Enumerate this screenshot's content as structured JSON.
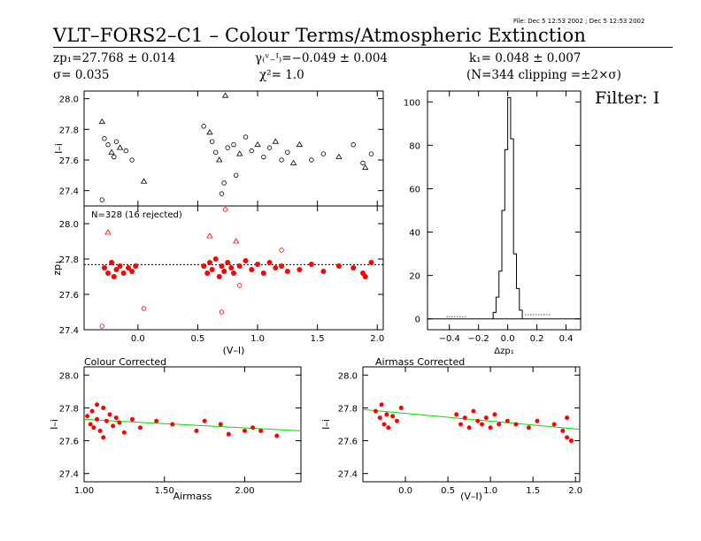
{
  "header": {
    "file_stamp": "File: Dec  5 12:53 2002 ; Dec  5 12:53 2002",
    "title": "VLT–FORS2–C1 – Colour Terms/Atmospheric Extinction",
    "zp": "zp₁=27.768 ± 0.014",
    "sigma": "σ= 0.035",
    "gamma": "γ₍ᵛ₋ᴵ₎=−0.049 ± 0.004",
    "chi2": "χ²=  1.0",
    "k": "k₁= 0.048 ± 0.007",
    "clipping": "(N=344 clipping =±2×σ)",
    "filter": "Filter: I"
  },
  "colors": {
    "accepted": "#ff0000",
    "fit": "#00dd00",
    "axis": "#000000"
  },
  "chart_data": [
    {
      "id": "top-left",
      "type": "scatter",
      "title": "",
      "xlabel": "",
      "ylabel": "I–i",
      "xlim": [
        -0.45,
        2.05
      ],
      "ylim": [
        27.3,
        28.05
      ],
      "yticks": [
        "28.0",
        "27.8",
        "27.6",
        "27.4"
      ],
      "markers": "open black circles and triangles",
      "series": [
        {
          "values": [
            [
              -0.3,
              27.85
            ],
            [
              -0.28,
              27.74
            ],
            [
              -0.25,
              27.7
            ],
            [
              -0.22,
              27.65
            ],
            [
              -0.2,
              27.62
            ],
            [
              -0.18,
              27.72
            ],
            [
              -0.15,
              27.68
            ],
            [
              -0.1,
              27.66
            ],
            [
              -0.05,
              27.6
            ],
            [
              0.05,
              27.46
            ],
            [
              -0.3,
              27.34
            ],
            [
              0.55,
              27.82
            ],
            [
              0.6,
              27.78
            ],
            [
              0.62,
              27.72
            ],
            [
              0.65,
              27.65
            ],
            [
              0.68,
              27.6
            ],
            [
              0.7,
              27.38
            ],
            [
              0.72,
              27.45
            ],
            [
              0.73,
              28.02
            ],
            [
              0.75,
              27.68
            ],
            [
              0.8,
              27.7
            ],
            [
              0.85,
              27.64
            ],
            [
              0.9,
              27.75
            ],
            [
              0.95,
              27.66
            ],
            [
              1.0,
              27.7
            ],
            [
              1.05,
              27.62
            ],
            [
              1.1,
              27.68
            ],
            [
              1.15,
              27.72
            ],
            [
              1.2,
              27.6
            ],
            [
              1.25,
              27.65
            ],
            [
              1.35,
              27.7
            ],
            [
              1.45,
              27.6
            ],
            [
              1.55,
              27.64
            ],
            [
              1.68,
              27.62
            ],
            [
              1.8,
              27.7
            ],
            [
              1.88,
              27.58
            ],
            [
              1.9,
              27.55
            ],
            [
              1.95,
              27.64
            ],
            [
              0.82,
              27.5
            ],
            [
              1.3,
              27.58
            ]
          ]
        }
      ]
    },
    {
      "id": "bottom-left",
      "type": "scatter",
      "title": "",
      "xlabel": "(V–I)",
      "ylabel": "zp₁",
      "annotation": "N=328 (16 rejected)",
      "xlim": [
        -0.45,
        2.05
      ],
      "ylim": [
        27.4,
        28.1
      ],
      "xticks": [
        "0.0",
        "0.5",
        "1.0",
        "1.5",
        "2.0"
      ],
      "yticks": [
        "28.0",
        "27.8",
        "27.6",
        "27.4"
      ],
      "reference_line": 27.768,
      "series": [
        {
          "name": "accepted",
          "values": [
            [
              -0.28,
              27.75
            ],
            [
              -0.25,
              27.72
            ],
            [
              -0.22,
              27.78
            ],
            [
              -0.2,
              27.7
            ],
            [
              -0.18,
              27.74
            ],
            [
              -0.15,
              27.76
            ],
            [
              -0.12,
              27.72
            ],
            [
              -0.08,
              27.75
            ],
            [
              -0.05,
              27.73
            ],
            [
              -0.02,
              27.76
            ],
            [
              0.55,
              27.76
            ],
            [
              0.58,
              27.72
            ],
            [
              0.6,
              27.78
            ],
            [
              0.62,
              27.74
            ],
            [
              0.65,
              27.8
            ],
            [
              0.68,
              27.7
            ],
            [
              0.7,
              27.76
            ],
            [
              0.72,
              27.73
            ],
            [
              0.75,
              27.78
            ],
            [
              0.78,
              27.75
            ],
            [
              0.8,
              27.72
            ],
            [
              0.85,
              27.76
            ],
            [
              0.9,
              27.79
            ],
            [
              0.95,
              27.74
            ],
            [
              1.0,
              27.77
            ],
            [
              1.05,
              27.72
            ],
            [
              1.1,
              27.78
            ],
            [
              1.15,
              27.75
            ],
            [
              1.2,
              27.76
            ],
            [
              1.25,
              27.73
            ],
            [
              1.35,
              27.74
            ],
            [
              1.45,
              27.77
            ],
            [
              1.55,
              27.73
            ],
            [
              1.68,
              27.76
            ],
            [
              1.8,
              27.75
            ],
            [
              1.88,
              27.72
            ],
            [
              1.9,
              27.7
            ],
            [
              1.95,
              27.78
            ]
          ]
        },
        {
          "name": "rejected",
          "values": [
            [
              -0.25,
              27.95
            ],
            [
              0.05,
              27.52
            ],
            [
              -0.3,
              27.42
            ],
            [
              0.6,
              27.93
            ],
            [
              0.7,
              27.5
            ],
            [
              0.73,
              28.08
            ],
            [
              0.82,
              27.9
            ],
            [
              1.2,
              27.85
            ],
            [
              0.85,
              27.65
            ]
          ]
        }
      ]
    },
    {
      "id": "histogram",
      "type": "bar",
      "title": "",
      "xlabel": "Δzp₁",
      "ylabel": "",
      "xlim": [
        -0.55,
        0.5
      ],
      "ylim": [
        -5,
        105
      ],
      "xticks": [
        "−0.4",
        "−0.2",
        "0.0",
        "0.2",
        "0.4"
      ],
      "yticks": [
        "0",
        "20",
        "40",
        "60",
        "80",
        "100"
      ],
      "bins": [
        [
          -0.1,
          -0.08,
          3
        ],
        [
          -0.08,
          -0.06,
          10
        ],
        [
          -0.06,
          -0.04,
          22
        ],
        [
          -0.04,
          -0.02,
          50
        ],
        [
          -0.02,
          0.0,
          78
        ],
        [
          0.0,
          0.02,
          102
        ],
        [
          0.02,
          0.04,
          83
        ],
        [
          0.04,
          0.06,
          30
        ],
        [
          0.06,
          0.08,
          14
        ],
        [
          0.08,
          0.1,
          4
        ]
      ]
    },
    {
      "id": "colour-corrected",
      "type": "scatter",
      "title": "Colour Corrected",
      "xlabel": "Airmass",
      "ylabel": "I–i",
      "xlim": [
        1.0,
        2.35
      ],
      "ylim": [
        27.35,
        28.05
      ],
      "xticks": [
        "1.00",
        "1.50",
        "2.00"
      ],
      "yticks": [
        "28.0",
        "27.8",
        "27.6",
        "27.4"
      ],
      "fit": [
        [
          1.0,
          27.73
        ],
        [
          2.35,
          27.66
        ]
      ],
      "series": [
        {
          "values": [
            [
              1.02,
              27.75
            ],
            [
              1.04,
              27.7
            ],
            [
              1.05,
              27.78
            ],
            [
              1.06,
              27.68
            ],
            [
              1.08,
              27.73
            ],
            [
              1.1,
              27.66
            ],
            [
              1.12,
              27.8
            ],
            [
              1.14,
              27.72
            ],
            [
              1.16,
              27.76
            ],
            [
              1.18,
              27.69
            ],
            [
              1.2,
              27.74
            ],
            [
              1.22,
              27.71
            ],
            [
              1.25,
              27.65
            ],
            [
              1.3,
              27.73
            ],
            [
              1.35,
              27.68
            ],
            [
              1.45,
              27.72
            ],
            [
              1.55,
              27.7
            ],
            [
              1.7,
              27.66
            ],
            [
              1.75,
              27.72
            ],
            [
              1.85,
              27.7
            ],
            [
              1.9,
              27.64
            ],
            [
              2.0,
              27.66
            ],
            [
              2.05,
              27.68
            ],
            [
              2.1,
              27.66
            ],
            [
              2.2,
              27.63
            ],
            [
              1.12,
              27.62
            ],
            [
              1.08,
              27.82
            ]
          ]
        }
      ]
    },
    {
      "id": "airmass-corrected",
      "type": "scatter",
      "title": "Airmass Corrected",
      "xlabel": "(V–I)",
      "ylabel": "I–i",
      "xlim": [
        -0.5,
        2.05
      ],
      "ylim": [
        27.35,
        28.05
      ],
      "xticks": [
        "0.0",
        "0.5",
        "1.0",
        "1.5",
        "2.0"
      ],
      "yticks": [
        "28.0",
        "27.8",
        "27.6",
        "27.4"
      ],
      "fit": [
        [
          -0.5,
          27.79
        ],
        [
          2.05,
          27.67
        ]
      ],
      "series": [
        {
          "values": [
            [
              -0.35,
              27.78
            ],
            [
              -0.3,
              27.74
            ],
            [
              -0.28,
              27.82
            ],
            [
              -0.25,
              27.7
            ],
            [
              -0.22,
              27.76
            ],
            [
              -0.2,
              27.68
            ],
            [
              -0.15,
              27.75
            ],
            [
              -0.1,
              27.72
            ],
            [
              -0.05,
              27.8
            ],
            [
              0.6,
              27.76
            ],
            [
              0.65,
              27.7
            ],
            [
              0.7,
              27.74
            ],
            [
              0.75,
              27.68
            ],
            [
              0.8,
              27.78
            ],
            [
              0.85,
              27.72
            ],
            [
              0.9,
              27.7
            ],
            [
              0.95,
              27.74
            ],
            [
              1.0,
              27.68
            ],
            [
              1.05,
              27.76
            ],
            [
              1.1,
              27.7
            ],
            [
              1.2,
              27.72
            ],
            [
              1.3,
              27.7
            ],
            [
              1.45,
              27.68
            ],
            [
              1.55,
              27.72
            ],
            [
              1.75,
              27.7
            ],
            [
              1.85,
              27.66
            ],
            [
              1.9,
              27.62
            ],
            [
              1.95,
              27.6
            ],
            [
              1.9,
              27.74
            ]
          ]
        }
      ]
    }
  ]
}
